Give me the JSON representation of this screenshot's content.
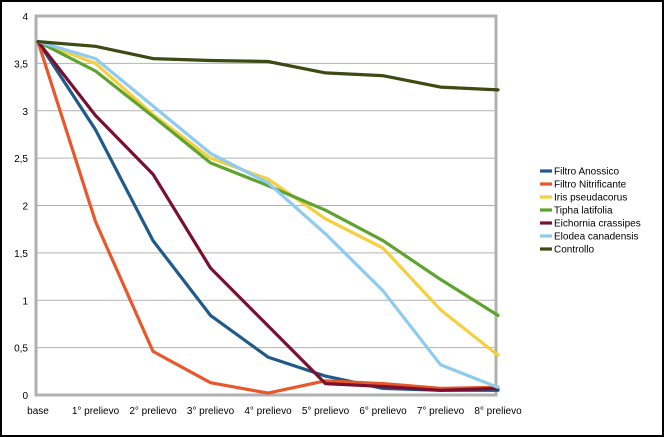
{
  "chart_data": {
    "type": "line",
    "title": "",
    "xlabel": "",
    "ylabel": "",
    "categories": [
      "base",
      "1° prelievo",
      "2° prelievo",
      "3° prelievo",
      "4° prelievo",
      "5° prelievo",
      "6° prelievo",
      "7° prelievo",
      "8° prelievo"
    ],
    "ylim": [
      0,
      4
    ],
    "yticks": [
      {
        "value": 0,
        "label": "0"
      },
      {
        "value": 0.5,
        "label": "0,5"
      },
      {
        "value": 1,
        "label": "1"
      },
      {
        "value": 1.5,
        "label": "1,5"
      },
      {
        "value": 2,
        "label": "2"
      },
      {
        "value": 2.5,
        "label": "2,5"
      },
      {
        "value": 3,
        "label": "3"
      },
      {
        "value": 3.5,
        "label": "3,5"
      },
      {
        "value": 4,
        "label": "4"
      }
    ],
    "grid": true,
    "legend_position": "right",
    "series": [
      {
        "name": "Filtro Anossico",
        "color": "#1f5a8a",
        "values": [
          3.73,
          2.8,
          1.63,
          0.84,
          0.4,
          0.2,
          0.07,
          0.05,
          0.05
        ]
      },
      {
        "name": "Filtro Nitrificante",
        "color": "#e8582b",
        "values": [
          3.73,
          1.83,
          0.46,
          0.13,
          0.02,
          0.15,
          0.12,
          0.07,
          0.08
        ]
      },
      {
        "name": "Iris pseudacorus",
        "color": "#f4d03f",
        "values": [
          3.73,
          3.5,
          2.96,
          2.5,
          2.28,
          1.86,
          1.55,
          0.9,
          0.42
        ]
      },
      {
        "name": "Tipha latifolia",
        "color": "#5ea32f",
        "values": [
          3.73,
          3.42,
          2.94,
          2.45,
          2.21,
          1.95,
          1.63,
          1.22,
          0.84
        ]
      },
      {
        "name": "Eichornia crassipes",
        "color": "#7a1030",
        "values": [
          3.73,
          2.95,
          2.33,
          1.34,
          0.73,
          0.12,
          0.09,
          0.05,
          0.07
        ]
      },
      {
        "name": "Elodea canadensis",
        "color": "#8ecbef",
        "values": [
          3.73,
          3.55,
          3.05,
          2.55,
          2.24,
          1.7,
          1.1,
          0.32,
          0.08
        ]
      },
      {
        "name": "Controllo",
        "color": "#3d4a12",
        "values": [
          3.73,
          3.68,
          3.55,
          3.53,
          3.52,
          3.4,
          3.37,
          3.25,
          3.22
        ]
      }
    ]
  }
}
